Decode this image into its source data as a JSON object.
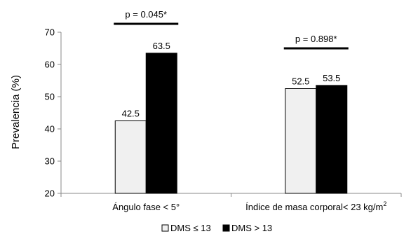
{
  "chart_data": {
    "type": "bar",
    "ylabel": "Prevalencia (%)",
    "ylim": [
      20,
      70
    ],
    "yticks": [
      20,
      30,
      40,
      50,
      60,
      70
    ],
    "categories": [
      "Ángulo fase < 5°",
      "Índice de masa corporal< 23 kg/m²"
    ],
    "category_label_parts": [
      {
        "main": "Ángulo fase < 5°",
        "sup": ""
      },
      {
        "main": "Índice de masa corporal< 23 kg/m",
        "sup": "2"
      }
    ],
    "series": [
      {
        "name": "DMS ≤ 13",
        "color": "#f0f0f0",
        "values": [
          42.5,
          52.5
        ],
        "labels": [
          "42.5",
          "52.5"
        ]
      },
      {
        "name": "DMS > 13",
        "color": "#000000",
        "values": [
          63.5,
          53.5
        ],
        "labels": [
          "63.5",
          "53.5"
        ]
      }
    ],
    "annotations": [
      "p = 0.045*",
      "p = 0.898*"
    ],
    "grid": false,
    "legend_position": "bottom-center"
  }
}
